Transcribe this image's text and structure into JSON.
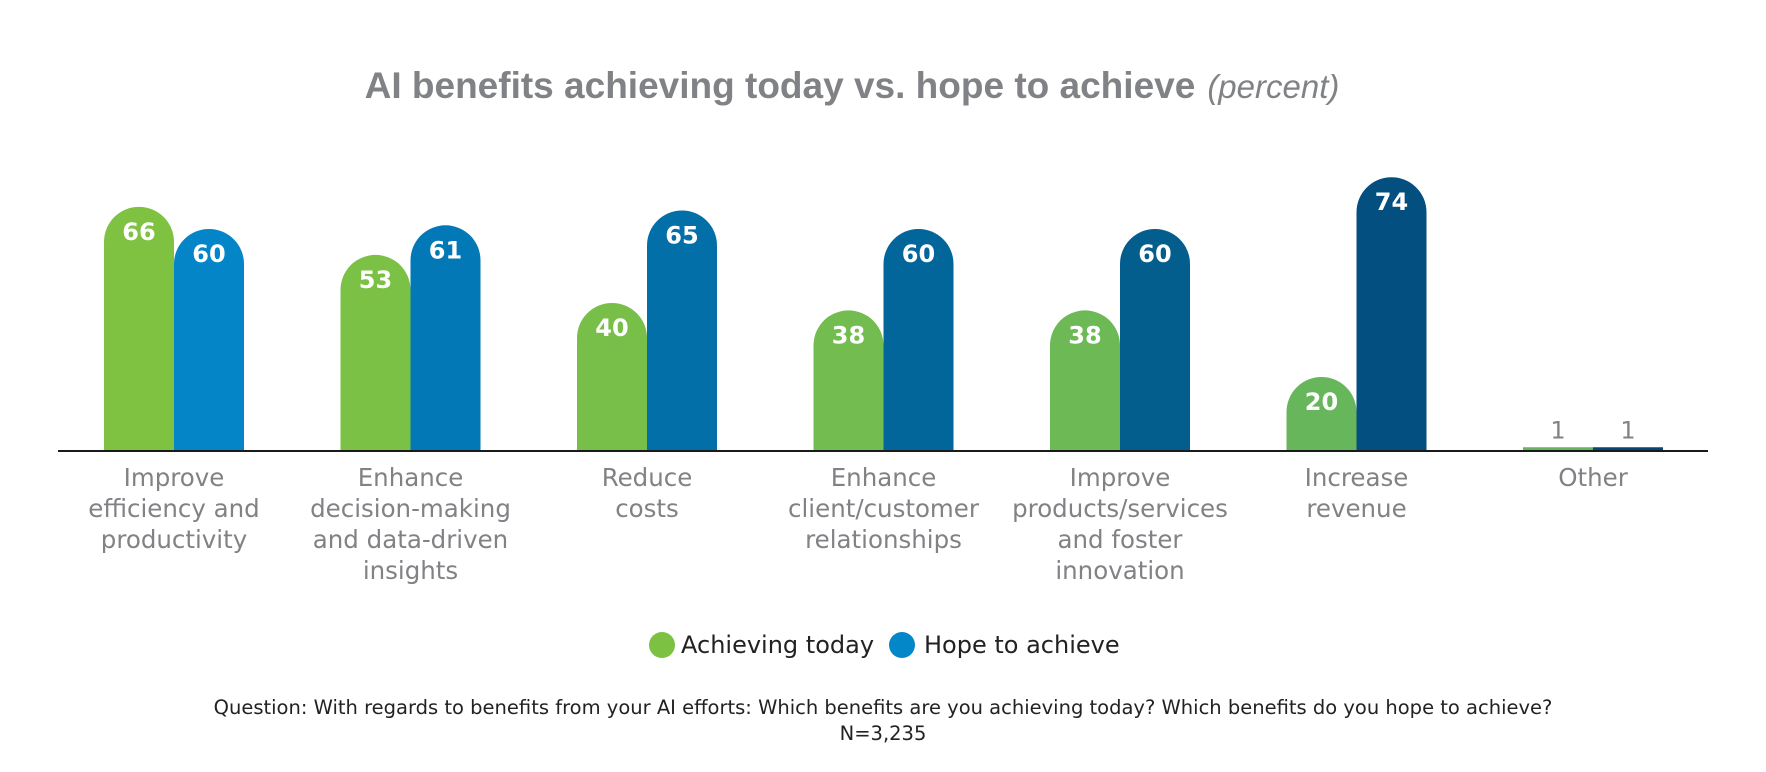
{
  "chart_data": {
    "type": "bar",
    "title": "AI benefits achieving today vs. hope to achieve",
    "title_unit": "(percent)",
    "categories": [
      [
        "Improve",
        "efficiency and",
        "productivity"
      ],
      [
        "Enhance",
        "decision-making",
        "and data-driven",
        "insights"
      ],
      [
        "Reduce",
        "costs"
      ],
      [
        "Enhance",
        "client/customer",
        "relationships"
      ],
      [
        "Improve",
        "products/services",
        "and foster",
        "innovation"
      ],
      [
        "Increase",
        "revenue"
      ],
      [
        "Other"
      ]
    ],
    "series": [
      {
        "name": "Achieving today",
        "values": [
          66,
          53,
          40,
          38,
          38,
          20,
          1
        ],
        "colors": [
          "#7fc241",
          "#7bc145",
          "#78bf49",
          "#73bc4f",
          "#6db955",
          "#68b65c",
          "#64b462"
        ]
      },
      {
        "name": "Hope to achieve",
        "values": [
          60,
          61,
          65,
          60,
          60,
          74,
          1
        ],
        "colors": [
          "#0385c8",
          "#0279b6",
          "#036fa8",
          "#03669b",
          "#035d8d",
          "#034f7f",
          "#034677"
        ]
      }
    ],
    "legend_position": "bottom",
    "grid": false,
    "ylim": [
      0,
      74
    ]
  },
  "legend": [
    {
      "label": "Achieving today",
      "color": "#7cc142"
    },
    {
      "label": "Hope to achieve",
      "color": "#0387c9"
    }
  ],
  "footnote": {
    "question": "Question: With regards to benefits from your AI efforts: Which benefits are you achieving today? Which benefits do you hope to achieve?",
    "sample": "N=3,235"
  }
}
